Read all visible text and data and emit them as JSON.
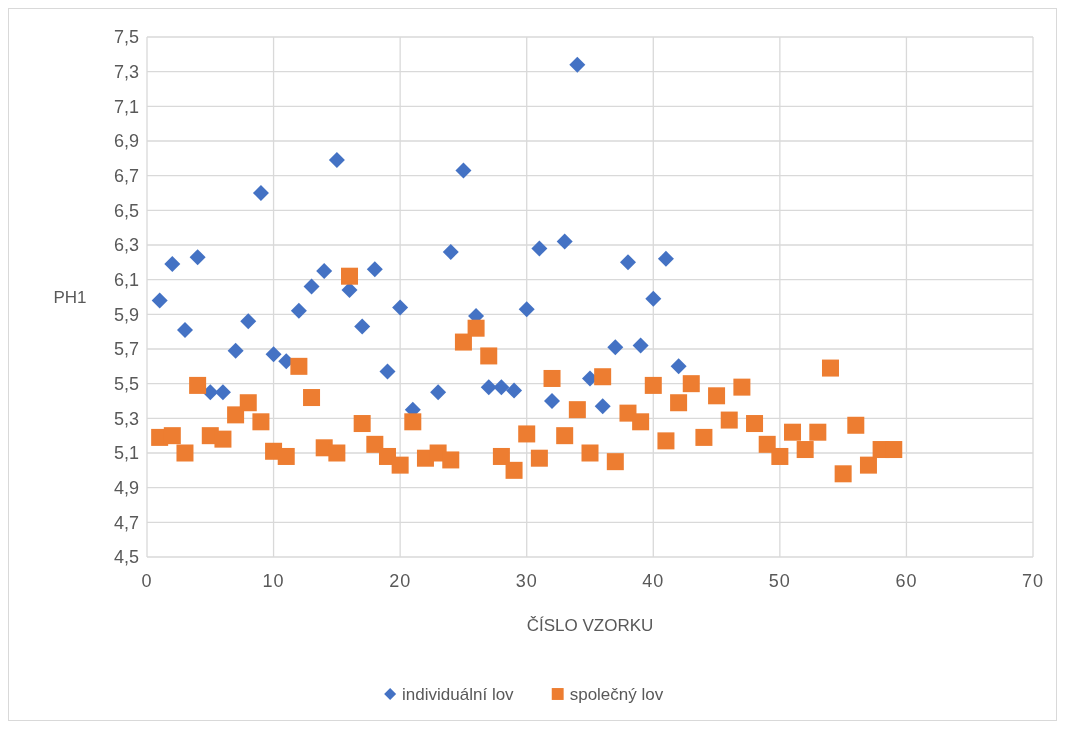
{
  "chart_data": {
    "type": "scatter",
    "xlabel": "ČÍSLO VZORKU",
    "ylabel": "PH1",
    "xlim": [
      0,
      70
    ],
    "xticks": [
      0,
      10,
      20,
      30,
      40,
      50,
      60,
      70
    ],
    "ylim": [
      4.5,
      7.5
    ],
    "yticks": [
      {
        "value": 4.5,
        "label": "4,5"
      },
      {
        "value": 4.7,
        "label": "4,7"
      },
      {
        "value": 4.9,
        "label": "4,9"
      },
      {
        "value": 5.1,
        "label": "5,1"
      },
      {
        "value": 5.3,
        "label": "5,3"
      },
      {
        "value": 5.5,
        "label": "5,5"
      },
      {
        "value": 5.7,
        "label": "5,7"
      },
      {
        "value": 5.9,
        "label": "5,9"
      },
      {
        "value": 6.1,
        "label": "6,1"
      },
      {
        "value": 6.3,
        "label": "6,3"
      },
      {
        "value": 6.5,
        "label": "6,5"
      },
      {
        "value": 6.7,
        "label": "6,7"
      },
      {
        "value": 6.9,
        "label": "6,9"
      },
      {
        "value": 7.1,
        "label": "7,1"
      },
      {
        "value": 7.3,
        "label": "7,3"
      },
      {
        "value": 7.5,
        "label": "7,5"
      }
    ],
    "grid": true,
    "legend": "bottom",
    "series": [
      {
        "name": "individuální lov",
        "color": "#4472c4",
        "marker": "diamond",
        "x": [
          1,
          2,
          3,
          4,
          5,
          6,
          7,
          8,
          9,
          10,
          11,
          12,
          13,
          14,
          15,
          16,
          17,
          18,
          19,
          20,
          21,
          23,
          24,
          25,
          26,
          27,
          28,
          29,
          30,
          31,
          32,
          33,
          34,
          35,
          36,
          37,
          38,
          39,
          40,
          41,
          42
        ],
        "values": [
          5.98,
          6.19,
          5.81,
          6.23,
          5.45,
          5.45,
          5.69,
          5.86,
          6.6,
          5.67,
          5.63,
          5.92,
          6.06,
          6.15,
          6.79,
          6.04,
          5.83,
          6.16,
          5.57,
          5.94,
          5.35,
          5.45,
          6.26,
          6.73,
          5.89,
          5.48,
          5.48,
          5.46,
          5.93,
          6.28,
          5.4,
          6.32,
          7.34,
          5.53,
          5.37,
          5.71,
          6.2,
          5.72,
          5.99,
          6.22,
          5.6
        ]
      },
      {
        "name": "společný lov",
        "color": "#ed7d31",
        "marker": "square",
        "x": [
          1,
          2,
          3,
          4,
          5,
          6,
          7,
          8,
          9,
          10,
          11,
          12,
          13,
          14,
          15,
          16,
          17,
          18,
          19,
          20,
          21,
          22,
          23,
          24,
          25,
          26,
          27,
          28,
          29,
          30,
          31,
          32,
          33,
          34,
          35,
          36,
          37,
          38,
          39,
          40,
          41,
          42,
          43,
          44,
          45,
          46,
          47,
          48,
          49,
          50,
          51,
          52,
          53,
          54,
          55,
          56,
          57,
          58,
          59
        ],
        "values": [
          5.19,
          5.2,
          5.1,
          5.49,
          5.2,
          5.18,
          5.32,
          5.39,
          5.28,
          5.11,
          5.08,
          5.6,
          5.42,
          5.13,
          5.1,
          6.12,
          5.27,
          5.15,
          5.08,
          5.03,
          5.28,
          5.07,
          5.1,
          5.06,
          5.74,
          5.82,
          5.66,
          5.08,
          5.0,
          5.21,
          5.07,
          5.53,
          5.2,
          5.35,
          5.1,
          5.54,
          5.05,
          5.33,
          5.28,
          5.49,
          5.17,
          5.39,
          5.5,
          5.19,
          5.43,
          5.29,
          5.48,
          5.27,
          5.15,
          5.08,
          5.22,
          5.12,
          5.22,
          5.59,
          4.98,
          5.26,
          5.03,
          5.12,
          5.12
        ]
      }
    ]
  }
}
